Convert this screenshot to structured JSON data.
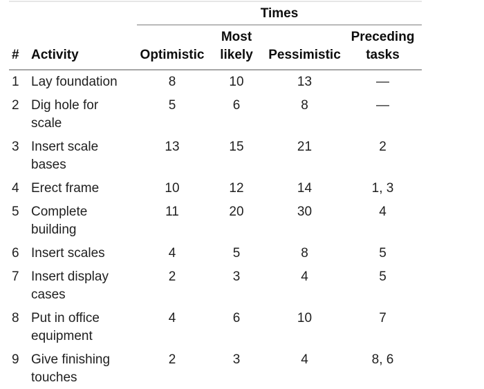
{
  "table": {
    "group_header": "Times",
    "columns": {
      "num": "#",
      "activity": "Activity",
      "optimistic": "Optimistic",
      "most_likely": "Most likely",
      "pessimistic": "Pessimistic",
      "preceding": "Preceding tasks"
    },
    "rows": [
      {
        "num": "1",
        "activity": "Lay foundation",
        "optimistic": "8",
        "most_likely": "10",
        "pessimistic": "13",
        "preceding": "—"
      },
      {
        "num": "2",
        "activity": "Dig hole for scale",
        "optimistic": "5",
        "most_likely": "6",
        "pessimistic": "8",
        "preceding": "—"
      },
      {
        "num": "3",
        "activity": "Insert scale bases",
        "optimistic": "13",
        "most_likely": "15",
        "pessimistic": "21",
        "preceding": "2"
      },
      {
        "num": "4",
        "activity": "Erect frame",
        "optimistic": "10",
        "most_likely": "12",
        "pessimistic": "14",
        "preceding": "1, 3"
      },
      {
        "num": "5",
        "activity": "Complete building",
        "optimistic": "11",
        "most_likely": "20",
        "pessimistic": "30",
        "preceding": "4"
      },
      {
        "num": "6",
        "activity": "Insert scales",
        "optimistic": "4",
        "most_likely": "5",
        "pessimistic": "8",
        "preceding": "5"
      },
      {
        "num": "7",
        "activity": "Insert display cases",
        "optimistic": "2",
        "most_likely": "3",
        "pessimistic": "4",
        "preceding": "5"
      },
      {
        "num": "8",
        "activity": "Put in office equipment",
        "optimistic": "4",
        "most_likely": "6",
        "pessimistic": "10",
        "preceding": "7"
      },
      {
        "num": "9",
        "activity": "Give finishing touches",
        "optimistic": "2",
        "most_likely": "3",
        "pessimistic": "4",
        "preceding": "8, 6"
      }
    ],
    "colors": {
      "text": "#1a1a1a",
      "rule_top": "#e6e6e6",
      "rule_times": "#b9b9b9",
      "rule_header": "#a6a6a6",
      "rule_bottom": "#dedede"
    }
  }
}
